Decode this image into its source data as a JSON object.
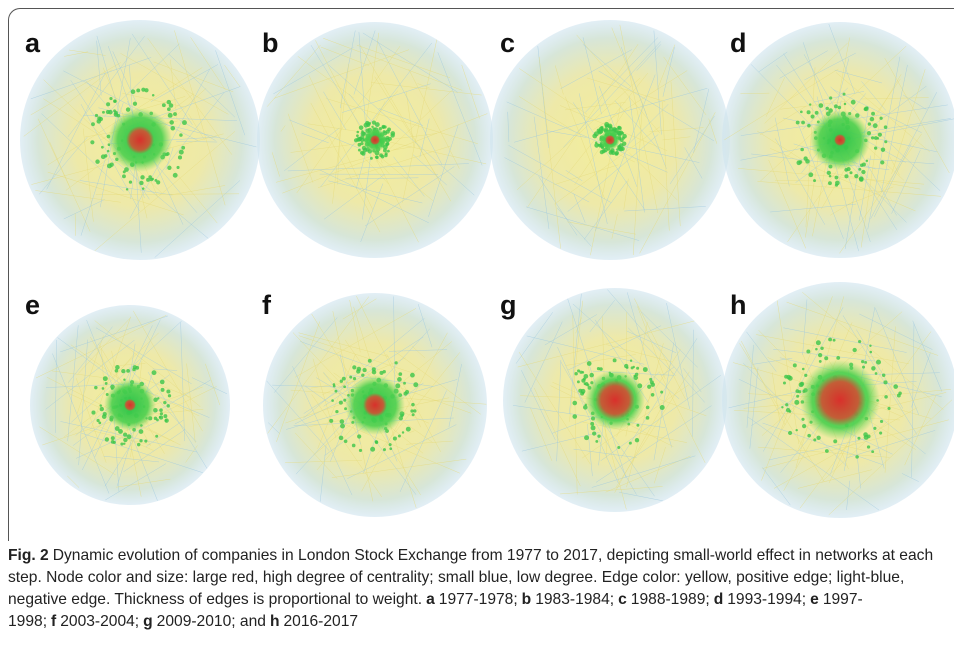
{
  "figure": {
    "panels": [
      {
        "label": "a",
        "period": "1977-1978;"
      },
      {
        "label": "b",
        "period": "1983-1984;"
      },
      {
        "label": "c",
        "period": "1988-1989;"
      },
      {
        "label": "d",
        "period": "1993-1994;"
      },
      {
        "label": "e",
        "period": "1997-1998;"
      },
      {
        "label": "f",
        "period": "2003-2004;"
      },
      {
        "label": "g",
        "period": "2009-2010; and"
      },
      {
        "label": "h",
        "period": "2016-2017"
      }
    ],
    "caption": {
      "label": "Fig. 2",
      "text": "Dynamic evolution of companies in London Stock Exchange from 1977 to 2017, depicting small-world effect in networks at each step. Node color and size: large red, high degree of centrality; small blue, low degree. Edge color: yellow, positive edge; light-blue, negative edge. Thickness of edges is proportional to weight."
    }
  }
}
